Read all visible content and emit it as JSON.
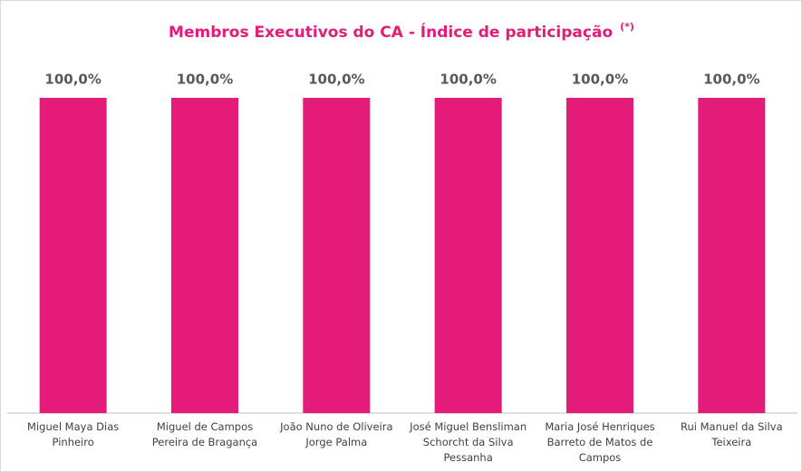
{
  "chart_data": {
    "type": "bar",
    "title": "Membros Executivos do CA - Índice de participação",
    "title_note": "(*)",
    "categories": [
      "Miguel Maya Dias Pinheiro",
      "Miguel de Campos Pereira de Bragança",
      "João Nuno de Oliveira Jorge Palma",
      "José Miguel Bensliman Schorcht da Silva Pessanha",
      "Maria José Henriques Barreto de Matos de Campos",
      "Rui Manuel da Silva Teixeira"
    ],
    "values": [
      100,
      100,
      100,
      100,
      100,
      100
    ],
    "value_labels": [
      "100,0%",
      "100,0%",
      "100,0%",
      "100,0%",
      "100,0%",
      "100,0%"
    ],
    "color": "#e31c79"
  }
}
